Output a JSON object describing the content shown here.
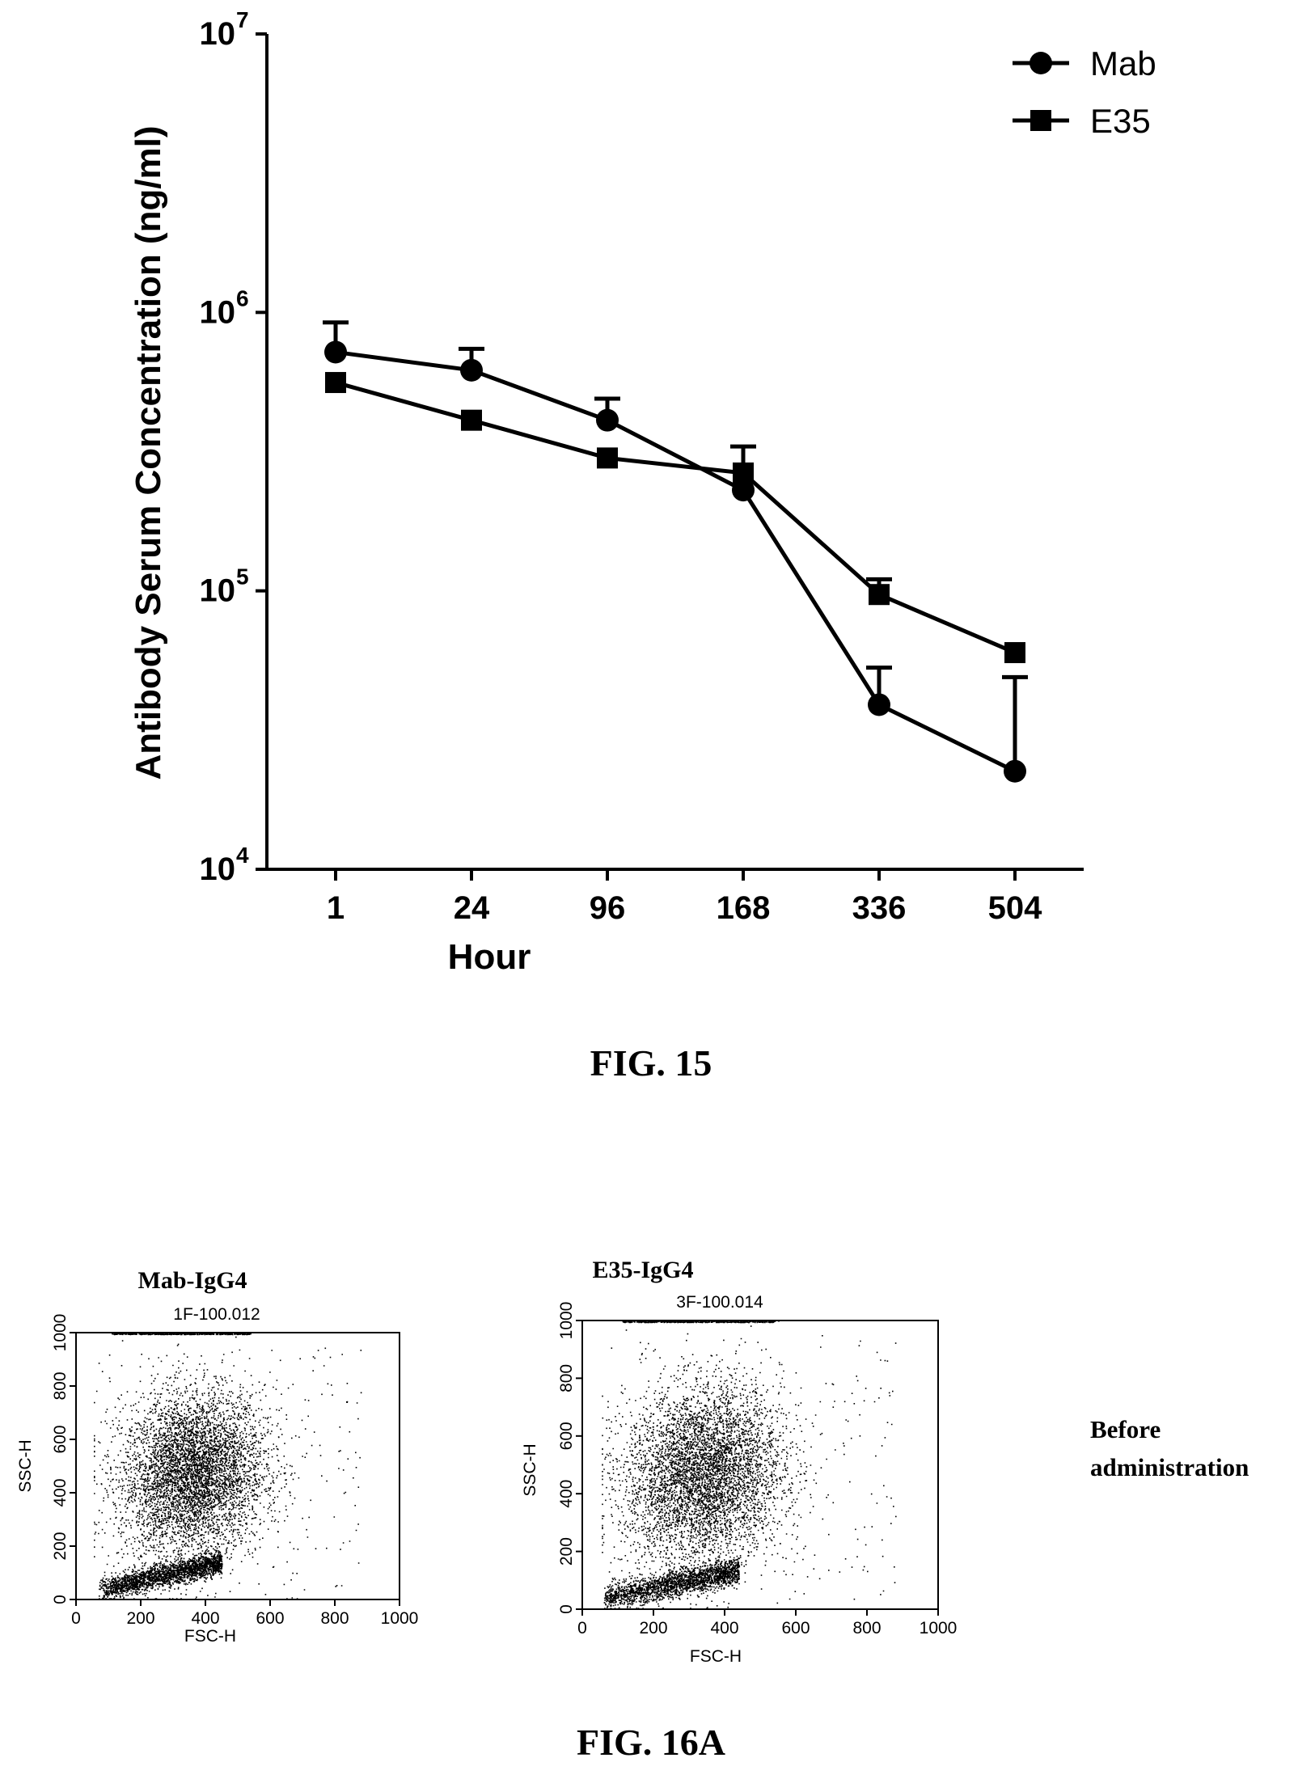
{
  "figure15": {
    "caption": "FIG. 15",
    "chart_data": {
      "type": "line",
      "categories": [
        "1",
        "24",
        "96",
        "168",
        "336",
        "504"
      ],
      "xlabel": "Hour",
      "ylabel": "Antibody Serum Concentration (ng/ml)",
      "yscale": "log",
      "ylim": [
        10000,
        10000000
      ],
      "yticks": [
        {
          "base": "10",
          "exp": "4",
          "value": 10000
        },
        {
          "base": "10",
          "exp": "5",
          "value": 100000
        },
        {
          "base": "10",
          "exp": "6",
          "value": 1000000
        },
        {
          "base": "10",
          "exp": "7",
          "value": 10000000
        }
      ],
      "legend_position": "top-right",
      "series": [
        {
          "name": "Mab",
          "marker": "circle",
          "values": [
            720000,
            620000,
            410000,
            230000,
            39000,
            22500
          ],
          "error_upper": [
            920000,
            740000,
            490000,
            330000,
            53000,
            49000
          ]
        },
        {
          "name": "E35",
          "marker": "square",
          "values": [
            560000,
            410000,
            300000,
            265000,
            97000,
            60000
          ],
          "error_upper": [
            560000,
            410000,
            300000,
            265000,
            110000,
            60000
          ]
        }
      ]
    }
  },
  "figure16a": {
    "caption": "FIG. 16A",
    "side_note_line1": "Before",
    "side_note_line2": "administration",
    "panels": [
      {
        "title": "Mab-IgG4",
        "sample_id": "1F-100.012",
        "xlabel": "FSC-H",
        "ylabel": "SSC-H"
      },
      {
        "title": "E35-IgG4",
        "sample_id": "3F-100.014",
        "xlabel": "FSC-H",
        "ylabel": "SSC-H"
      }
    ],
    "x_ticks": [
      "0",
      "200",
      "400",
      "600",
      "800",
      "1000"
    ],
    "y_ticks": [
      "0",
      "200",
      "400",
      "600",
      "800",
      "1000"
    ]
  }
}
